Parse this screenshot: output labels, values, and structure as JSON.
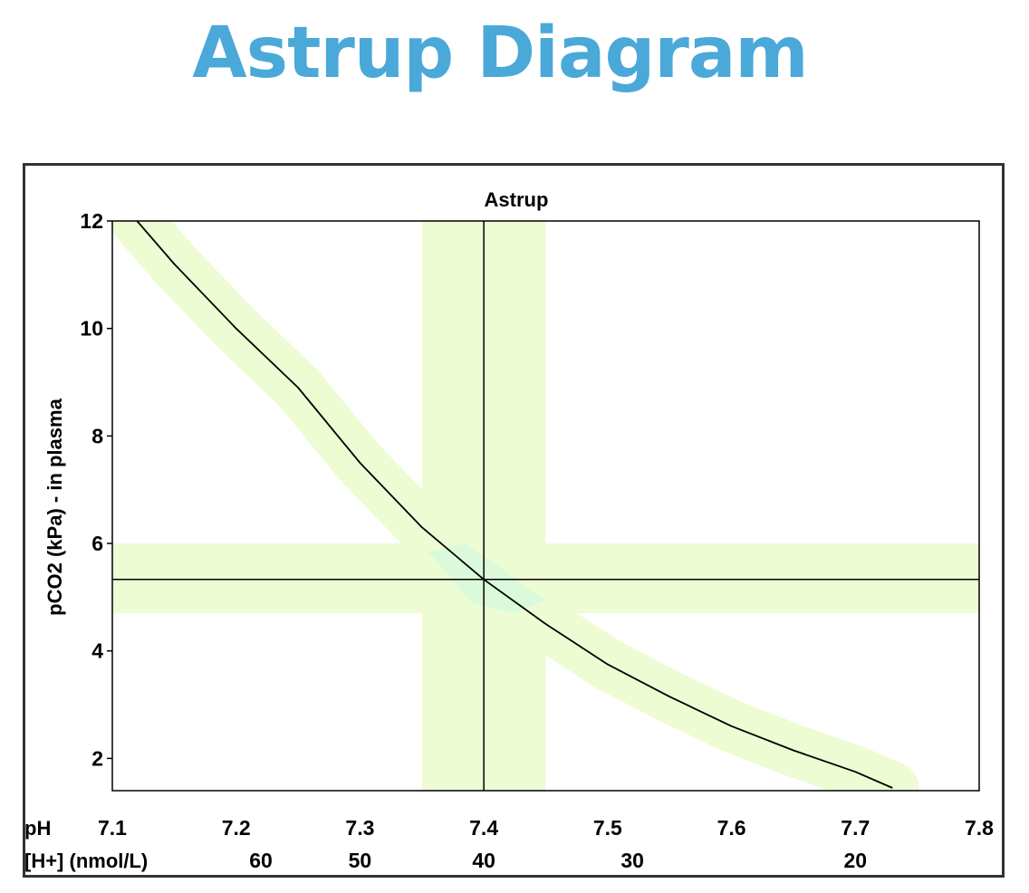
{
  "page": {
    "title": "Astrup Diagram"
  },
  "chart_data": {
    "type": "line",
    "title": "Astrup",
    "ylabel": "pCO2 (kPa)  - in plasma",
    "xlabel": "pH",
    "secondary_xlabel": "[H+] (nmol/L)",
    "xlim": [
      7.1,
      7.8
    ],
    "ylim": [
      1.4,
      12
    ],
    "x_ticks": [
      "7.1",
      "7.2",
      "7.3",
      "7.4",
      "7.5",
      "7.6",
      "7.7",
      "7.8"
    ],
    "y_ticks": [
      "2",
      "4",
      "6",
      "8",
      "10",
      "12"
    ],
    "h_ticks": [
      {
        "label": "60",
        "value": 7.22
      },
      {
        "label": "50",
        "value": 7.3
      },
      {
        "label": "40",
        "value": 7.4
      },
      {
        "label": "30",
        "value": 7.52
      },
      {
        "label": "20",
        "value": 7.7
      }
    ],
    "series": [
      {
        "x": [
          7.12,
          7.15,
          7.2,
          7.25,
          7.3,
          7.35,
          7.4,
          7.45,
          7.5,
          7.55,
          7.6,
          7.65,
          7.7,
          7.73
        ],
        "y": [
          12.0,
          11.2,
          10.0,
          8.9,
          7.5,
          6.3,
          5.33,
          4.5,
          3.75,
          3.15,
          2.6,
          2.15,
          1.75,
          1.45
        ]
      }
    ],
    "normal_ph_band": [
      7.35,
      7.45
    ],
    "normal_pco2_band": [
      4.7,
      6.0
    ],
    "reference_lines": {
      "ph": 7.4,
      "pco2": 5.33
    },
    "colors": {
      "band": "#eefcd4",
      "curve_band": "#eefcd4",
      "overlap": "#d8fadc",
      "line": "#000000",
      "title": "#4aa9d8",
      "frame": "#333333"
    },
    "grid": false
  }
}
